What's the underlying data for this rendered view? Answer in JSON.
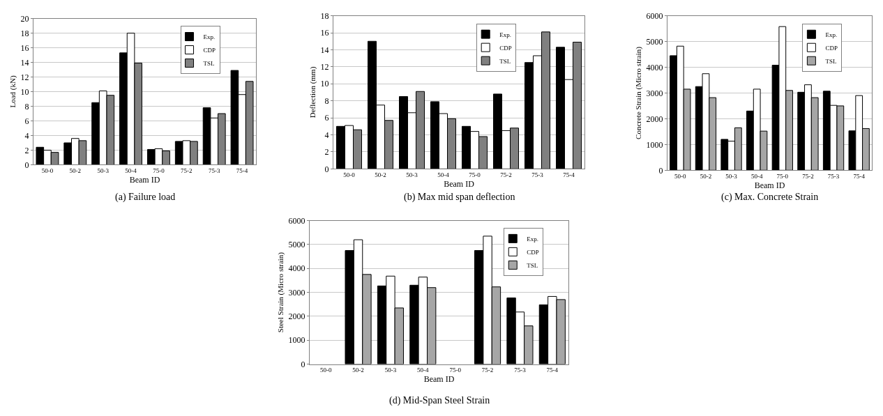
{
  "chart_data": [
    {
      "type": "bar",
      "title": "(a) Failure load",
      "xlabel": "Beam ID",
      "ylabel": "Load (kN)",
      "categories": [
        "50-0",
        "50-2",
        "50-3",
        "50-4",
        "75-0",
        "75-2",
        "75-3",
        "75-4"
      ],
      "series": [
        {
          "name": "Exp.",
          "color": "#000000",
          "values": [
            2.4,
            3.0,
            8.5,
            15.3,
            2.1,
            3.2,
            7.8,
            12.9
          ]
        },
        {
          "name": "CDP",
          "color": "#ffffff",
          "values": [
            2.0,
            3.6,
            10.1,
            18.0,
            2.2,
            3.3,
            6.4,
            9.6
          ]
        },
        {
          "name": "TSL",
          "color": "#808080",
          "values": [
            1.7,
            3.3,
            9.5,
            13.9,
            1.9,
            3.2,
            7.0,
            11.4
          ]
        }
      ],
      "ylim": [
        0,
        20
      ],
      "yticks": [
        0,
        2,
        4,
        6,
        8,
        10,
        12,
        14,
        16,
        18,
        20
      ],
      "grid": "y",
      "legend": "top right"
    },
    {
      "type": "bar",
      "title": "(b) Max mid span deflection",
      "xlabel": "Beam ID",
      "ylabel": "Deflection (mm)",
      "categories": [
        "50-0",
        "50-2",
        "50-3",
        "50-4",
        "75-0",
        "75-2",
        "75-3",
        "75-4"
      ],
      "series": [
        {
          "name": "Exp.",
          "color": "#000000",
          "values": [
            5.0,
            15.0,
            8.5,
            7.9,
            5.0,
            8.8,
            12.5,
            14.3
          ]
        },
        {
          "name": "CDP",
          "color": "#ffffff",
          "values": [
            5.1,
            7.5,
            6.6,
            6.5,
            4.4,
            4.5,
            13.3,
            10.5
          ]
        },
        {
          "name": "TSL",
          "color": "#808080",
          "values": [
            4.6,
            5.7,
            9.1,
            5.9,
            3.8,
            4.8,
            16.1,
            14.9
          ]
        }
      ],
      "ylim": [
        0,
        18
      ],
      "yticks": [
        0,
        2,
        4,
        6,
        8,
        10,
        12,
        14,
        16,
        18
      ],
      "grid": "y",
      "legend": "top right"
    },
    {
      "type": "bar",
      "title": "(c) Max. Concrete Strain",
      "xlabel": "Beam ID",
      "ylabel": "Concrete Strain (Micro strain)",
      "categories": [
        "50-0",
        "50-2",
        "50-3",
        "50-4",
        "75-0",
        "75-2",
        "75-3",
        "75-4"
      ],
      "series": [
        {
          "name": "Exp.",
          "color": "#000000",
          "values": [
            4450,
            3250,
            1200,
            2300,
            4080,
            3030,
            3070,
            1530
          ]
        },
        {
          "name": "CDP",
          "color": "#ffffff",
          "values": [
            4820,
            3750,
            1130,
            3150,
            5580,
            3320,
            2520,
            2900
          ]
        },
        {
          "name": "TSL",
          "color": "#a6a6a6",
          "values": [
            3150,
            2820,
            1650,
            1520,
            3100,
            2820,
            2500,
            1620
          ]
        }
      ],
      "ylim": [
        0,
        6000
      ],
      "yticks": [
        0,
        1000,
        2000,
        3000,
        4000,
        5000,
        6000
      ],
      "grid": "y",
      "legend": "top right"
    },
    {
      "type": "bar",
      "title": "(d) Mid-Span Steel Strain",
      "xlabel": "Beam ID",
      "ylabel": "Steel Strain (Micro strain)",
      "categories": [
        "50-0",
        "50-2",
        "50-3",
        "50-4",
        "75-0",
        "75-2",
        "75-3",
        "75-4"
      ],
      "series": [
        {
          "name": "Exp.",
          "color": "#000000",
          "values": [
            null,
            4750,
            3270,
            3300,
            null,
            4750,
            2770,
            2480
          ]
        },
        {
          "name": "CDP",
          "color": "#ffffff",
          "values": [
            null,
            5200,
            3680,
            3640,
            null,
            5350,
            2180,
            2830
          ]
        },
        {
          "name": "TSL",
          "color": "#a6a6a6",
          "values": [
            null,
            3750,
            2350,
            3200,
            null,
            3230,
            1600,
            2700
          ]
        }
      ],
      "ylim": [
        0,
        6000
      ],
      "yticks": [
        0,
        1000,
        2000,
        3000,
        4000,
        5000,
        6000
      ],
      "grid": "y",
      "legend": "top right"
    }
  ]
}
